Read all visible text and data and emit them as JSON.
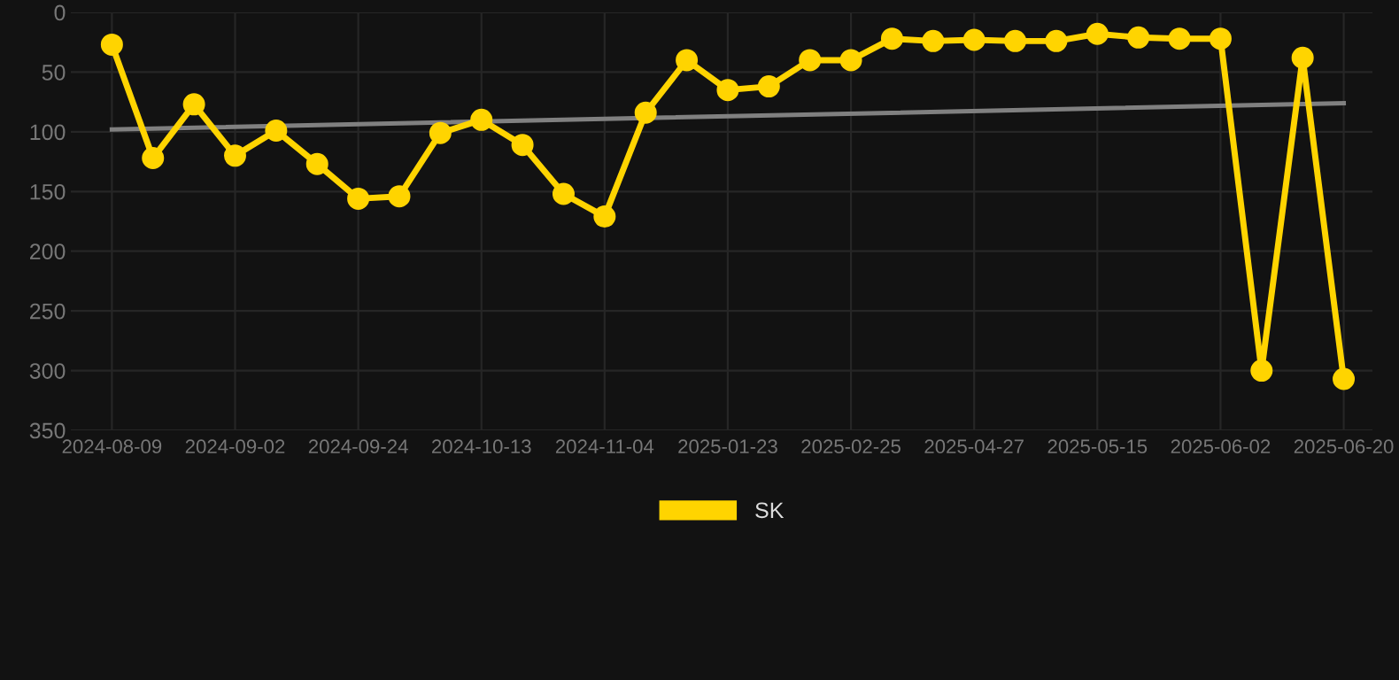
{
  "chart_data": {
    "type": "line",
    "categories": [
      "2024-08-09",
      null,
      null,
      "2024-09-02",
      null,
      null,
      "2024-09-24",
      null,
      null,
      "2024-10-13",
      null,
      null,
      "2024-11-04",
      null,
      null,
      "2025-01-23",
      null,
      null,
      "2025-02-25",
      null,
      null,
      "2025-04-27",
      null,
      null,
      "2025-05-15",
      null,
      null,
      "2025-06-02",
      null,
      null,
      "2025-06-20"
    ],
    "series": [
      {
        "name": "SK",
        "color": "#ffd400",
        "marker": "circle",
        "values": [
          27,
          122,
          77,
          120,
          99,
          127,
          156,
          154,
          101,
          90,
          111,
          152,
          171,
          84,
          40,
          65,
          62,
          40,
          40,
          22,
          24,
          23,
          24,
          24,
          18,
          21,
          22,
          22,
          300,
          38,
          307
        ]
      },
      {
        "type": "line",
        "color": "#808080",
        "marker": "none",
        "values": [
          98,
          null,
          null,
          null,
          null,
          null,
          null,
          null,
          null,
          null,
          null,
          null,
          null,
          null,
          null,
          null,
          null,
          null,
          null,
          null,
          null,
          null,
          null,
          null,
          null,
          null,
          null,
          null,
          null,
          null,
          76
        ]
      }
    ],
    "ylim": [
      350,
      0
    ],
    "yticks": [
      0,
      50,
      100,
      150,
      200,
      250,
      300,
      350
    ],
    "grid": true,
    "legend": "bottom",
    "line_style": "solid"
  }
}
